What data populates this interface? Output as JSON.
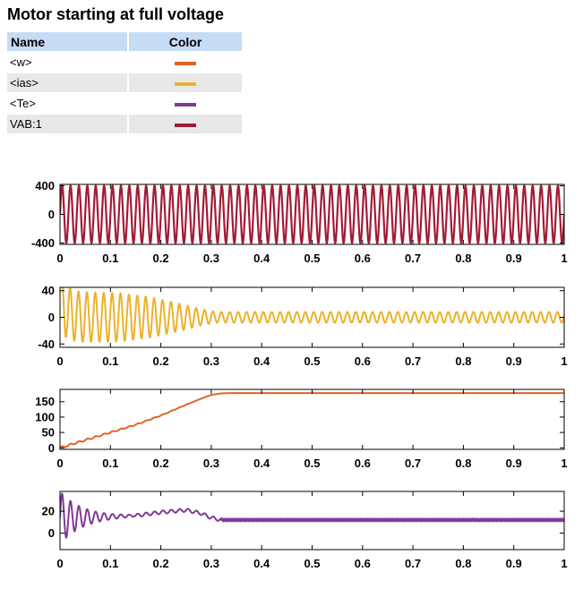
{
  "title": "Motor starting at full voltage",
  "legend": {
    "headers": {
      "name": "Name",
      "color": "Color"
    },
    "items": [
      {
        "name": "<w>",
        "color": "#e0642a"
      },
      {
        "name": "<ias>",
        "color": "#edb12a"
      },
      {
        "name": "<Te>",
        "color": "#7e3a98"
      },
      {
        "name": "VAB:1",
        "color": "#a31b33"
      }
    ]
  },
  "chart_data": [
    {
      "type": "line",
      "series": [
        {
          "name": "VAB:1",
          "color": "#a31b33",
          "kind": "sine",
          "amplitude": 400,
          "frequency_hz": 60
        }
      ],
      "xlim": [
        0,
        1
      ],
      "ylim": [
        -420,
        420
      ],
      "xticks": [
        "0",
        "0.1",
        "0.2",
        "0.3",
        "0.4",
        "0.5",
        "0.6",
        "0.7",
        "0.8",
        "0.9",
        "1"
      ],
      "yticks": [
        "400",
        "0",
        "-400"
      ],
      "ytick_values": [
        400,
        0,
        -400
      ],
      "grid": false
    },
    {
      "type": "line",
      "series": [
        {
          "name": "<ias>",
          "color": "#edb12a",
          "kind": "current",
          "frequency_hz": 60,
          "envelope_t": [
            0,
            0.02,
            0.06,
            0.12,
            0.18,
            0.24,
            0.28,
            0.31,
            0.35,
            1.0
          ],
          "envelope_a": [
            45,
            38,
            37,
            36,
            30,
            20,
            12,
            8,
            8,
            8
          ]
        }
      ],
      "xlim": [
        0,
        1
      ],
      "ylim": [
        -45,
        45
      ],
      "xticks": [
        "0",
        "0.1",
        "0.2",
        "0.3",
        "0.4",
        "0.5",
        "0.6",
        "0.7",
        "0.8",
        "0.9",
        "1"
      ],
      "yticks": [
        "40",
        "0",
        "-40"
      ],
      "ytick_values": [
        40,
        0,
        -40
      ],
      "grid": false
    },
    {
      "type": "line",
      "series": [
        {
          "name": "<w>",
          "color": "#e0642a",
          "kind": "speed",
          "t": [
            0,
            0.03,
            0.06,
            0.1,
            0.15,
            0.2,
            0.25,
            0.28,
            0.3,
            0.32,
            0.34,
            1.0
          ],
          "y": [
            0,
            15,
            30,
            50,
            75,
            105,
            140,
            160,
            172,
            177,
            178,
            178
          ]
        }
      ],
      "xlim": [
        0,
        1
      ],
      "ylim": [
        -5,
        190
      ],
      "xticks": [
        "0",
        "0.1",
        "0.2",
        "0.3",
        "0.4",
        "0.5",
        "0.6",
        "0.7",
        "0.8",
        "0.9",
        "1"
      ],
      "yticks": [
        "150",
        "100",
        "50",
        "0"
      ],
      "ytick_values": [
        150,
        100,
        50,
        0
      ],
      "grid": false
    },
    {
      "type": "line",
      "series": [
        {
          "name": "<Te>",
          "color": "#7e3a98",
          "kind": "torque",
          "mean_t": [
            0,
            0.1,
            0.15,
            0.2,
            0.25,
            0.28,
            0.3,
            0.32,
            1.0
          ],
          "mean_y": [
            14,
            15,
            16,
            19,
            21,
            18,
            14,
            12,
            12
          ],
          "osc_amplitude_start": 24,
          "osc_decay_until": 0.15
        }
      ],
      "xlim": [
        0,
        1
      ],
      "ylim": [
        -15,
        38
      ],
      "xticks": [
        "0",
        "0.1",
        "0.2",
        "0.3",
        "0.4",
        "0.5",
        "0.6",
        "0.7",
        "0.8",
        "0.9",
        "1"
      ],
      "yticks": [
        "20",
        "0"
      ],
      "ytick_values": [
        20,
        0
      ],
      "grid": false
    }
  ]
}
